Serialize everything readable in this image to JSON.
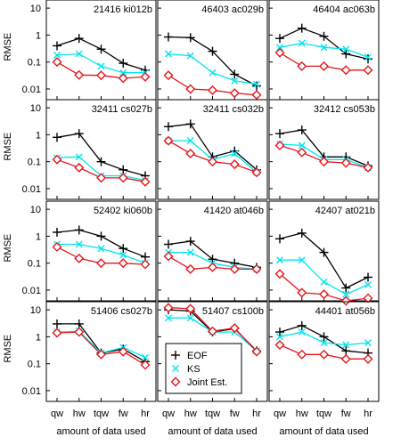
{
  "colors": {
    "eof": "#000000",
    "ks": "#00e5ee",
    "joint": "#e8141b"
  },
  "legend": {
    "entries": [
      "EOF",
      "KS",
      "Joint Est."
    ]
  },
  "axis": {
    "ylabel": "RMSE",
    "xlabel": "amount of data used",
    "categories": [
      "qw",
      "hw",
      "tqw",
      "fw",
      "hr"
    ],
    "ytick_labels": [
      "10",
      "1",
      "0.1",
      "0.01"
    ]
  },
  "chart_data": [
    {
      "type": "line",
      "title": "21416 ki012b",
      "yscale": "log",
      "ylim": [
        0.004,
        20
      ],
      "categories": [
        "qw",
        "hw",
        "tqw",
        "fw",
        "hr"
      ],
      "series": [
        {
          "name": "EOF",
          "values": [
            0.4,
            0.75,
            0.3,
            0.09,
            0.05
          ]
        },
        {
          "name": "KS",
          "values": [
            0.18,
            0.2,
            0.07,
            0.04,
            0.04
          ]
        },
        {
          "name": "Joint Est.",
          "values": [
            0.1,
            0.033,
            0.032,
            0.025,
            0.028
          ]
        }
      ]
    },
    {
      "type": "line",
      "title": "46403 ac029b",
      "yscale": "log",
      "ylim": [
        0.004,
        20
      ],
      "categories": [
        "qw",
        "hw",
        "tqw",
        "fw",
        "hr"
      ],
      "series": [
        {
          "name": "EOF",
          "values": [
            0.85,
            0.8,
            0.25,
            0.035,
            0.013
          ]
        },
        {
          "name": "KS",
          "values": [
            0.2,
            0.17,
            0.04,
            0.02,
            0.015
          ]
        },
        {
          "name": "Joint Est.",
          "values": [
            0.032,
            0.01,
            0.009,
            0.007,
            0.006
          ]
        }
      ]
    },
    {
      "type": "line",
      "title": "46404 ac063b",
      "yscale": "log",
      "ylim": [
        0.004,
        20
      ],
      "categories": [
        "qw",
        "hw",
        "tqw",
        "fw",
        "hr"
      ],
      "series": [
        {
          "name": "EOF",
          "values": [
            0.75,
            1.8,
            0.9,
            0.2,
            0.13
          ]
        },
        {
          "name": "KS",
          "values": [
            0.35,
            0.5,
            0.35,
            0.3,
            0.15
          ]
        },
        {
          "name": "Joint Est.",
          "values": [
            0.22,
            0.07,
            0.07,
            0.05,
            0.05
          ]
        }
      ]
    },
    {
      "type": "line",
      "title": "32411 cs027b",
      "yscale": "log",
      "ylim": [
        0.004,
        20
      ],
      "categories": [
        "qw",
        "hw",
        "tqw",
        "fw",
        "hr"
      ],
      "series": [
        {
          "name": "EOF",
          "values": [
            0.8,
            1.1,
            0.1,
            0.05,
            0.03
          ]
        },
        {
          "name": "KS",
          "values": [
            0.14,
            0.15,
            0.03,
            0.03,
            0.02
          ]
        },
        {
          "name": "Joint Est.",
          "values": [
            0.12,
            0.06,
            0.025,
            0.025,
            0.018
          ]
        }
      ]
    },
    {
      "type": "line",
      "title": "32411 cs032b",
      "yscale": "log",
      "ylim": [
        0.004,
        20
      ],
      "categories": [
        "qw",
        "hw",
        "tqw",
        "fw",
        "hr"
      ],
      "series": [
        {
          "name": "EOF",
          "values": [
            2,
            2.5,
            0.15,
            0.25,
            0.05
          ]
        },
        {
          "name": "KS",
          "values": [
            0.6,
            0.6,
            0.12,
            0.2,
            0.04
          ]
        },
        {
          "name": "Joint Est.",
          "values": [
            0.6,
            0.2,
            0.1,
            0.08,
            0.04
          ]
        }
      ]
    },
    {
      "type": "line",
      "title": "32412 cs053b",
      "yscale": "log",
      "ylim": [
        0.004,
        20
      ],
      "categories": [
        "qw",
        "hw",
        "tqw",
        "fw",
        "hr"
      ],
      "series": [
        {
          "name": "EOF",
          "values": [
            1.1,
            1.5,
            0.15,
            0.15,
            0.07
          ]
        },
        {
          "name": "KS",
          "values": [
            0.45,
            0.4,
            0.12,
            0.12,
            0.06
          ]
        },
        {
          "name": "Joint Est.",
          "values": [
            0.4,
            0.22,
            0.1,
            0.09,
            0.06
          ]
        }
      ]
    },
    {
      "type": "line",
      "title": "52402 ki060b",
      "yscale": "log",
      "ylim": [
        0.004,
        20
      ],
      "categories": [
        "qw",
        "hw",
        "tqw",
        "fw",
        "hr"
      ],
      "series": [
        {
          "name": "EOF",
          "values": [
            1.4,
            1.7,
            1,
            0.35,
            0.17
          ]
        },
        {
          "name": "KS",
          "values": [
            0.5,
            0.5,
            0.35,
            0.2,
            0.1
          ]
        },
        {
          "name": "Joint Est.",
          "values": [
            0.4,
            0.15,
            0.1,
            0.1,
            0.09
          ]
        }
      ]
    },
    {
      "type": "line",
      "title": "41420 at046b",
      "yscale": "log",
      "ylim": [
        0.004,
        20
      ],
      "categories": [
        "qw",
        "hw",
        "tqw",
        "fw",
        "hr"
      ],
      "series": [
        {
          "name": "EOF",
          "values": [
            0.5,
            0.65,
            0.14,
            0.1,
            0.07
          ]
        },
        {
          "name": "KS",
          "values": [
            0.25,
            0.25,
            0.1,
            0.07,
            0.06
          ]
        },
        {
          "name": "Joint Est.",
          "values": [
            0.18,
            0.06,
            0.07,
            0.06,
            0.06
          ]
        }
      ]
    },
    {
      "type": "line",
      "title": "42407 at021b",
      "yscale": "log",
      "ylim": [
        0.004,
        20
      ],
      "categories": [
        "qw",
        "hw",
        "tqw",
        "fw",
        "hr"
      ],
      "series": [
        {
          "name": "EOF",
          "values": [
            0.8,
            1.3,
            0.25,
            0.012,
            0.03
          ]
        },
        {
          "name": "KS",
          "values": [
            0.13,
            0.13,
            0.02,
            0.007,
            0.016
          ]
        },
        {
          "name": "Joint Est.",
          "values": [
            0.04,
            0.008,
            0.007,
            0.004,
            0.005
          ]
        }
      ]
    },
    {
      "type": "line",
      "title": "51406 cs027b",
      "yscale": "log",
      "ylim": [
        0.004,
        20
      ],
      "categories": [
        "qw",
        "hw",
        "tqw",
        "fw",
        "hr"
      ],
      "series": [
        {
          "name": "EOF",
          "values": [
            3,
            3,
            0.25,
            0.35,
            0.12
          ]
        },
        {
          "name": "KS",
          "values": [
            1.5,
            1.6,
            0.25,
            0.4,
            0.17
          ]
        },
        {
          "name": "Joint Est.",
          "values": [
            1.4,
            1.5,
            0.22,
            0.28,
            0.09
          ]
        }
      ]
    },
    {
      "type": "line",
      "title": "51407 cs100b",
      "yscale": "log",
      "ylim": [
        0.004,
        20
      ],
      "categories": [
        "qw",
        "hw",
        "tqw",
        "fw",
        "hr"
      ],
      "series": [
        {
          "name": "EOF",
          "values": [
            10,
            9,
            1.5,
            2,
            0.3
          ]
        },
        {
          "name": "KS",
          "values": [
            5,
            5,
            1.5,
            1.5,
            0.3
          ]
        },
        {
          "name": "Joint Est.",
          "values": [
            12,
            11,
            1.6,
            2.1,
            0.28
          ]
        }
      ]
    },
    {
      "type": "line",
      "title": "44401 at056b",
      "yscale": "log",
      "ylim": [
        0.004,
        20
      ],
      "categories": [
        "qw",
        "hw",
        "tqw",
        "fw",
        "hr"
      ],
      "series": [
        {
          "name": "EOF",
          "values": [
            1.5,
            2.6,
            1,
            0.3,
            0.25
          ]
        },
        {
          "name": "KS",
          "values": [
            1,
            1.5,
            0.6,
            0.5,
            0.6
          ]
        },
        {
          "name": "Joint Est.",
          "values": [
            0.5,
            0.22,
            0.22,
            0.15,
            0.15
          ]
        }
      ]
    }
  ]
}
